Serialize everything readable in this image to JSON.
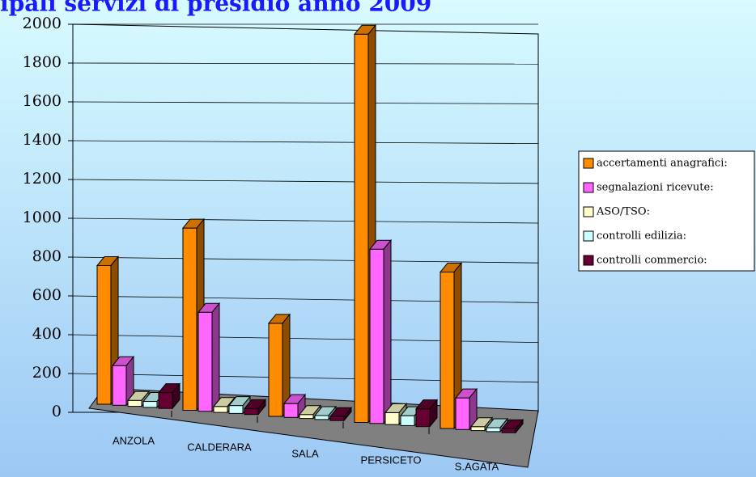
{
  "chart_data": {
    "type": "bar3d",
    "title": "ipali servizi di presidio anno 2009",
    "categories": [
      "ANZOLA",
      "CALDERARA",
      "SALA",
      "PERSICETO",
      "S.AGATA"
    ],
    "series": [
      {
        "name": "accertamenti anagrafici:",
        "color": "#ff8c00",
        "values": [
          700,
          920,
          470,
          1960,
          790
        ]
      },
      {
        "name": "segnalazioni ricevute:",
        "color": "#ff66ff",
        "values": [
          200,
          500,
          70,
          880,
          160
        ]
      },
      {
        "name": "ASO/TSO:",
        "color": "#ffffcc",
        "values": [
          30,
          30,
          20,
          60,
          20
        ]
      },
      {
        "name": "controlli edilizia:",
        "color": "#ccffff",
        "values": [
          30,
          40,
          20,
          50,
          20
        ]
      },
      {
        "name": "controlli commercio:",
        "color": "#660033",
        "values": [
          80,
          30,
          20,
          90,
          20
        ]
      }
    ],
    "ylim": [
      0,
      2000
    ],
    "yticks": [
      0,
      200,
      400,
      600,
      800,
      1000,
      1200,
      1400,
      1600,
      1800,
      2000
    ],
    "grid": true,
    "legend": "right"
  }
}
